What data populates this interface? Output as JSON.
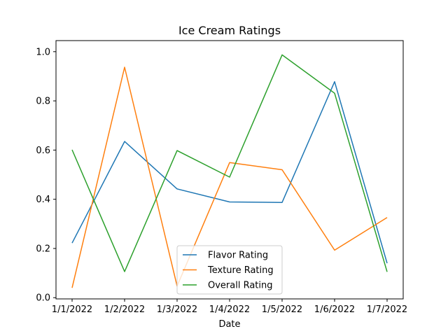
{
  "chart_data": {
    "type": "line",
    "title": "Ice Cream Ratings",
    "xlabel": "Date",
    "ylabel": "",
    "categories": [
      "1/1/2022",
      "1/2/2022",
      "1/3/2022",
      "1/4/2022",
      "1/5/2022",
      "1/6/2022",
      "1/7/2022"
    ],
    "ylim": [
      -0.005,
      1.045
    ],
    "yticks": [
      "0.0",
      "0.2",
      "0.4",
      "0.6",
      "0.8",
      "1.0"
    ],
    "ytick_values": [
      0.0,
      0.2,
      0.4,
      0.6,
      0.8,
      1.0
    ],
    "legend_position": "bottom-center",
    "series": [
      {
        "name": "Flavor Rating",
        "color": "#1f77b4",
        "values": [
          0.222,
          0.635,
          0.442,
          0.389,
          0.387,
          0.878,
          0.14
        ]
      },
      {
        "name": "Texture Rating",
        "color": "#ff7f0e",
        "values": [
          0.04,
          0.937,
          0.047,
          0.549,
          0.52,
          0.193,
          0.326
        ]
      },
      {
        "name": "Overall Rating",
        "color": "#2ca02c",
        "values": [
          0.601,
          0.106,
          0.598,
          0.49,
          0.987,
          0.831,
          0.105
        ]
      }
    ]
  }
}
